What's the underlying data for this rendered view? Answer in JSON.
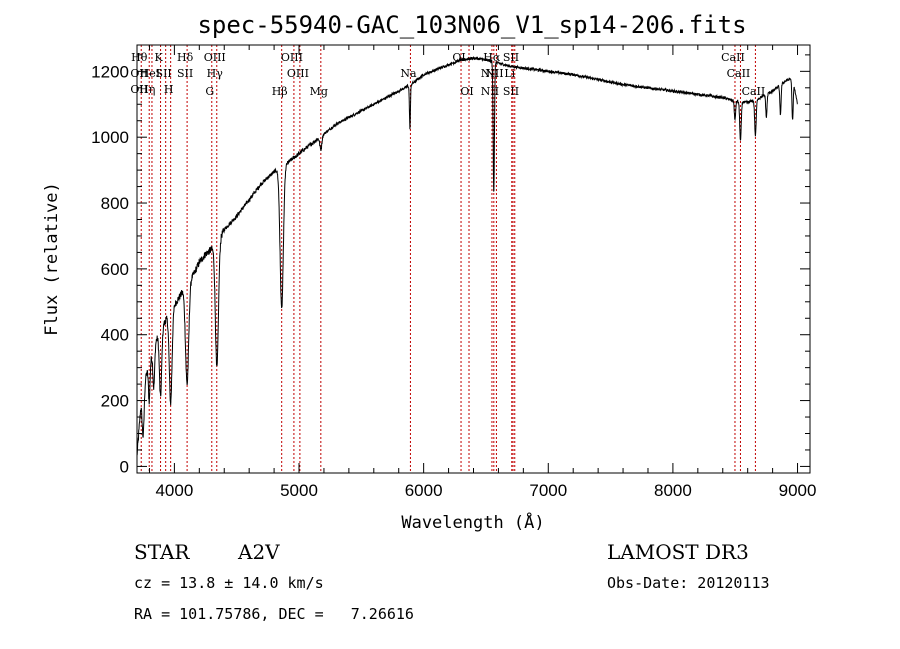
{
  "chart_data": {
    "type": "line",
    "title": "spec-55940-GAC_103N06_V1_sp14-206.fits",
    "xlabel": "Wavelength (Å)",
    "ylabel": "Flux (relative)",
    "xlim": [
      3700,
      9100
    ],
    "ylim": [
      -20,
      1280
    ],
    "x_ticks": [
      4000,
      5000,
      6000,
      7000,
      8000,
      9000
    ],
    "y_ticks": [
      0,
      200,
      400,
      600,
      800,
      1000,
      1200
    ],
    "grid": false,
    "continuum_anchors": [
      [
        3700,
        30
      ],
      [
        3730,
        180
      ],
      [
        3760,
        260
      ],
      [
        3800,
        310
      ],
      [
        3850,
        380
      ],
      [
        3900,
        420
      ],
      [
        3950,
        460
      ],
      [
        4000,
        490
      ],
      [
        4050,
        520
      ],
      [
        4100,
        560
      ],
      [
        4150,
        580
      ],
      [
        4200,
        620
      ],
      [
        4250,
        645
      ],
      [
        4300,
        660
      ],
      [
        4350,
        680
      ],
      [
        4400,
        720
      ],
      [
        4500,
        760
      ],
      [
        4600,
        810
      ],
      [
        4700,
        860
      ],
      [
        4800,
        895
      ],
      [
        4900,
        920
      ],
      [
        5000,
        950
      ],
      [
        5100,
        980
      ],
      [
        5200,
        1010
      ],
      [
        5300,
        1040
      ],
      [
        5500,
        1080
      ],
      [
        5700,
        1120
      ],
      [
        5900,
        1160
      ],
      [
        6000,
        1190
      ],
      [
        6100,
        1205
      ],
      [
        6200,
        1220
      ],
      [
        6300,
        1235
      ],
      [
        6400,
        1240
      ],
      [
        6500,
        1235
      ],
      [
        6600,
        1225
      ],
      [
        6700,
        1215
      ],
      [
        6800,
        1210
      ],
      [
        6900,
        1205
      ],
      [
        7000,
        1200
      ],
      [
        7200,
        1190
      ],
      [
        7400,
        1175
      ],
      [
        7600,
        1160
      ],
      [
        7800,
        1150
      ],
      [
        8000,
        1140
      ],
      [
        8200,
        1130
      ],
      [
        8400,
        1120
      ],
      [
        8500,
        1110
      ],
      [
        8600,
        1105
      ],
      [
        8700,
        1120
      ],
      [
        8800,
        1140
      ],
      [
        8900,
        1170
      ],
      [
        8960,
        1180
      ],
      [
        9000,
        1100
      ]
    ],
    "absorption_features": [
      [
        3750,
        140,
        8
      ],
      [
        3798,
        110,
        6
      ],
      [
        3835,
        120,
        7
      ],
      [
        3889,
        200,
        9
      ],
      [
        3970,
        280,
        11
      ],
      [
        4102,
        310,
        13
      ],
      [
        4341,
        380,
        12
      ],
      [
        4861,
        430,
        13
      ],
      [
        5175,
        40,
        8
      ],
      [
        5890,
        130,
        4
      ],
      [
        6563,
        400,
        5
      ],
      [
        8498,
        60,
        5
      ],
      [
        8542,
        120,
        6
      ],
      [
        8662,
        110,
        6
      ],
      [
        8750,
        70,
        5
      ],
      [
        8863,
        90,
        5
      ],
      [
        8960,
        130,
        5
      ]
    ],
    "spectral_lines": [
      {
        "w": 3734,
        "labels": [
          {
            "t": "Hθ",
            "row": 1
          },
          {
            "t": "OII",
            "row": 2
          },
          {
            "t": "OII",
            "row": 3
          }
        ]
      },
      {
        "w": 3798,
        "labels": [
          {
            "t": "Hη",
            "row": 3
          }
        ]
      },
      {
        "w": 3820,
        "labels": [
          {
            "t": "HeI",
            "row": 2
          }
        ]
      },
      {
        "w": 3889,
        "labels": [
          {
            "t": "K",
            "row": 1
          }
        ]
      },
      {
        "w": 3930,
        "labels": [
          {
            "t": "SII",
            "row": 2
          }
        ]
      },
      {
        "w": 3970,
        "labels": [
          {
            "t": "H",
            "row": 3
          }
        ]
      },
      {
        "w": 4102,
        "labels": [
          {
            "t": "Hδ",
            "row": 1
          },
          {
            "t": "SII",
            "row": 2
          }
        ]
      },
      {
        "w": 4300,
        "labels": [
          {
            "t": "G",
            "row": 4
          }
        ]
      },
      {
        "w": 4340,
        "labels": [
          {
            "t": "OIII",
            "row": 1
          },
          {
            "t": "Hγ",
            "row": 2
          }
        ]
      },
      {
        "w": 4861,
        "labels": [
          {
            "t": "Hβ",
            "row": 4
          }
        ]
      },
      {
        "w": 4959,
        "labels": [
          {
            "t": "OIII",
            "row": 1
          }
        ]
      },
      {
        "w": 5007,
        "labels": [
          {
            "t": "OIII",
            "row": 2
          }
        ]
      },
      {
        "w": 5175,
        "labels": [
          {
            "t": "Mg",
            "row": 4
          }
        ]
      },
      {
        "w": 5894,
        "labels": [
          {
            "t": "Na",
            "row": 2
          }
        ]
      },
      {
        "w": 6300,
        "labels": [
          {
            "t": "OI",
            "row": 1
          }
        ]
      },
      {
        "w": 6364,
        "labels": [
          {
            "t": "OI",
            "row": 4
          }
        ]
      },
      {
        "w": 6548,
        "labels": [
          {
            "t": "NII",
            "row": 2
          },
          {
            "t": "NII",
            "row": 4
          }
        ]
      },
      {
        "w": 6563,
        "labels": [
          {
            "t": "Hα",
            "row": 1
          }
        ]
      },
      {
        "w": 6584,
        "labels": [
          {
            "t": "NII",
            "row": 2
          }
        ]
      },
      {
        "w": 6707,
        "labels": [
          {
            "t": "Li",
            "row": 2
          }
        ]
      },
      {
        "w": 6717,
        "labels": [
          {
            "t": "SII",
            "row": 1
          },
          {
            "t": "SII",
            "row": 4
          }
        ]
      },
      {
        "w": 6731,
        "labels": []
      },
      {
        "w": 8498,
        "labels": [
          {
            "t": "CaII",
            "row": 1
          }
        ]
      },
      {
        "w": 8542,
        "labels": [
          {
            "t": "CaII",
            "row": 2
          }
        ]
      },
      {
        "w": 8662,
        "labels": [
          {
            "t": "CaII",
            "row": 4
          }
        ]
      }
    ],
    "line_color": "#000000",
    "marker_color": "#c00000"
  },
  "object_info": {
    "class": "STAR",
    "subclass": "A2V",
    "cz": "cz = 13.8 ± 14.0 km/s",
    "coords": "RA = 101.75786, DEC =   7.26616",
    "survey": "LAMOST DR3",
    "obs_date": "Obs-Date: 20120113"
  }
}
